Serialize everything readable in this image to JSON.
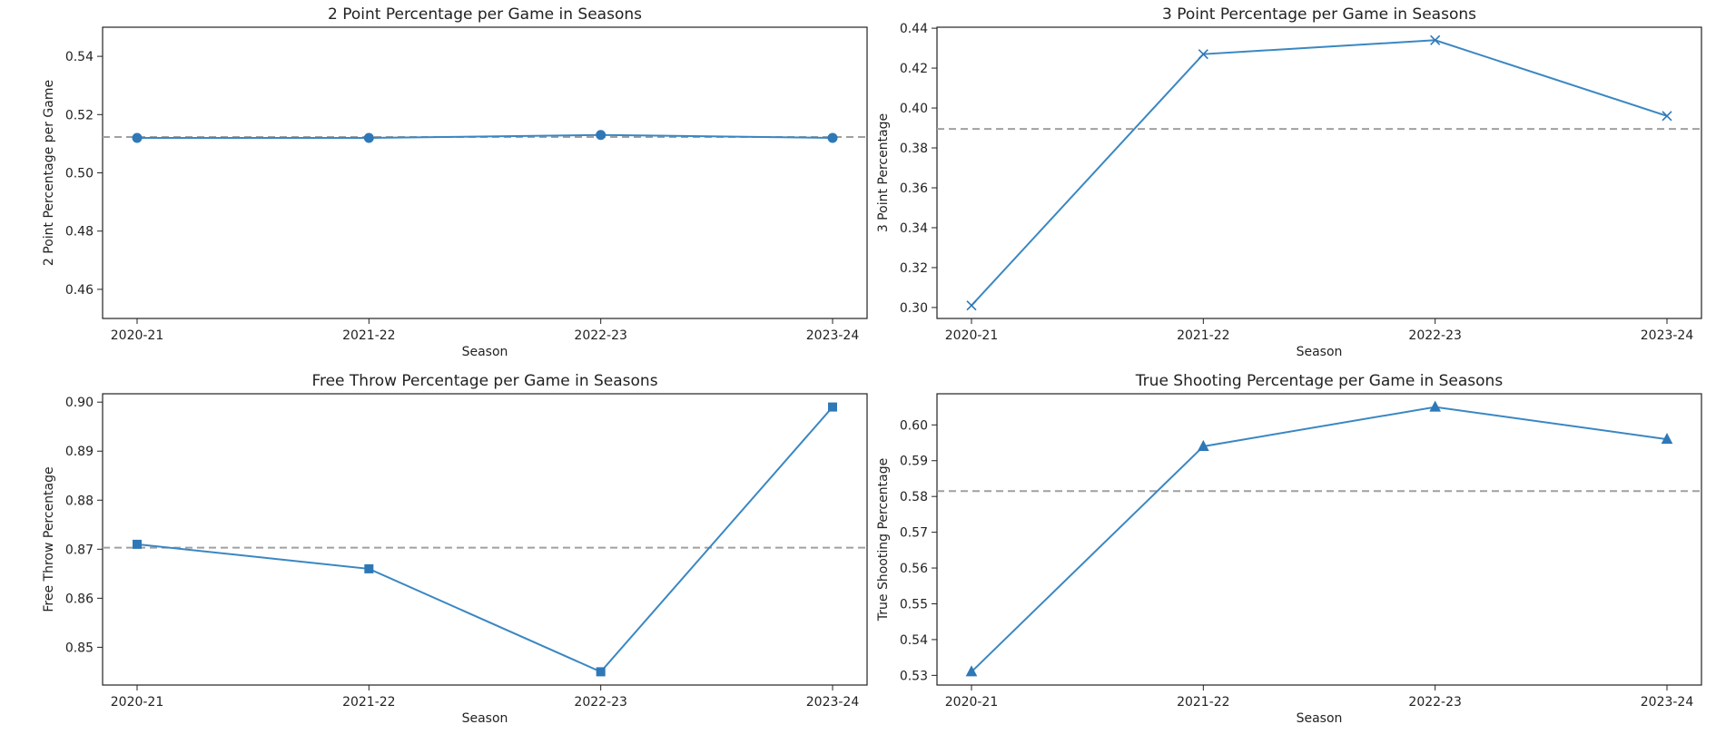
{
  "chart_data": [
    {
      "type": "line",
      "title": "2 Point Percentage per Game in Seasons",
      "xlabel": "Season",
      "ylabel": "2 Point Percentage per Game",
      "categories": [
        "2020-21",
        "2021-22",
        "2022-23",
        "2023-24"
      ],
      "values": [
        0.512,
        0.512,
        0.513,
        0.512
      ],
      "mean_line": 0.5123,
      "ylim": [
        0.45,
        0.55
      ],
      "yticks": [
        "0.46",
        "0.48",
        "0.50",
        "0.52",
        "0.54"
      ],
      "marker": "circle",
      "grid": false
    },
    {
      "type": "line",
      "title": "3 Point Percentage per Game in Seasons",
      "xlabel": "Season",
      "ylabel": "3 Point Percentage",
      "categories": [
        "2020-21",
        "2021-22",
        "2022-23",
        "2023-24"
      ],
      "values": [
        0.301,
        0.427,
        0.434,
        0.396
      ],
      "mean_line": 0.3895,
      "ylim": [
        0.2945,
        0.4405
      ],
      "yticks": [
        "0.30",
        "0.32",
        "0.34",
        "0.36",
        "0.38",
        "0.40",
        "0.42",
        "0.44"
      ],
      "marker": "x",
      "grid": false
    },
    {
      "type": "line",
      "title": "Free Throw Percentage per Game in Seasons",
      "xlabel": "Season",
      "ylabel": "Free Throw Percentage",
      "categories": [
        "2020-21",
        "2021-22",
        "2022-23",
        "2023-24"
      ],
      "values": [
        0.871,
        0.866,
        0.845,
        0.899
      ],
      "mean_line": 0.8703,
      "ylim": [
        0.8423,
        0.9017
      ],
      "yticks": [
        "0.85",
        "0.86",
        "0.87",
        "0.88",
        "0.89",
        "0.90"
      ],
      "marker": "square",
      "grid": false
    },
    {
      "type": "line",
      "title": "True Shooting Percentage per Game in Seasons",
      "xlabel": "Season",
      "ylabel": "True Shooting Percentage",
      "categories": [
        "2020-21",
        "2021-22",
        "2022-23",
        "2023-24"
      ],
      "values": [
        0.531,
        0.594,
        0.605,
        0.596
      ],
      "mean_line": 0.5815,
      "ylim": [
        0.5273,
        0.6087
      ],
      "yticks": [
        "0.53",
        "0.54",
        "0.55",
        "0.56",
        "0.57",
        "0.58",
        "0.59",
        "0.60"
      ],
      "marker": "triangle",
      "grid": false
    }
  ]
}
